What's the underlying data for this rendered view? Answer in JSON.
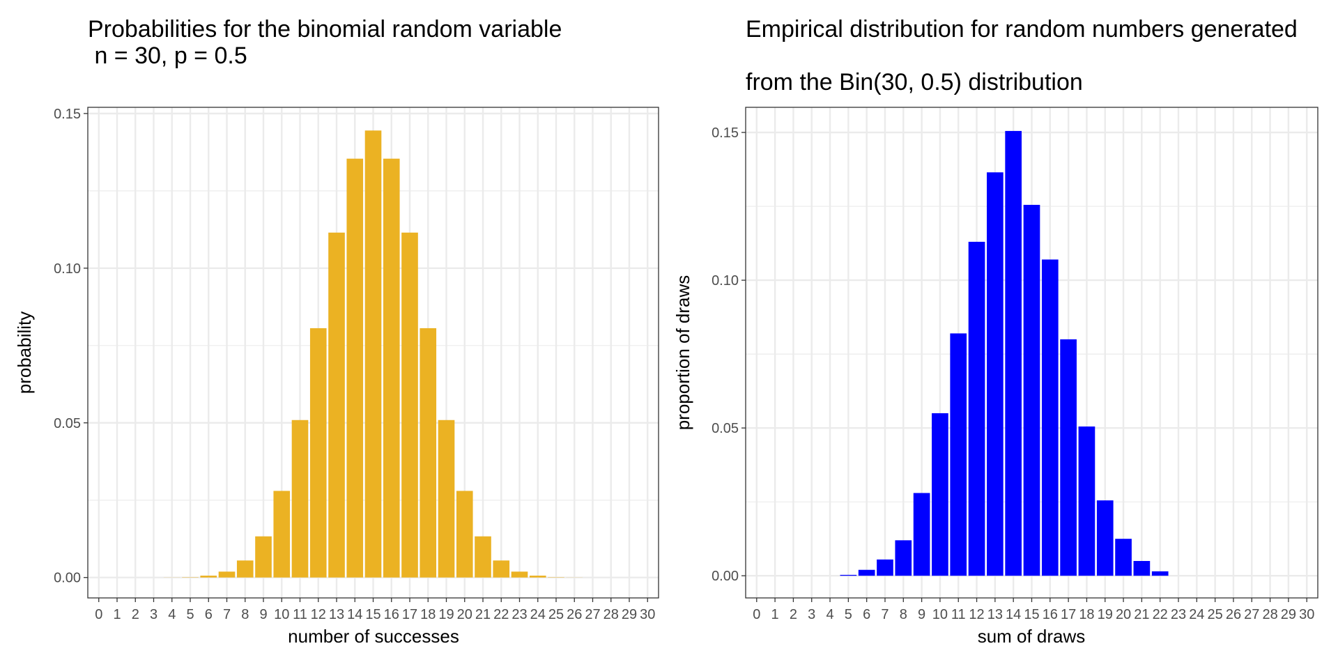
{
  "chart_data": [
    {
      "type": "bar",
      "title": "Probabilities for the binomial random variable\n n = 30, p = 0.5",
      "xlabel": "number of successes",
      "ylabel": "probability",
      "x": [
        0,
        1,
        2,
        3,
        4,
        5,
        6,
        7,
        8,
        9,
        10,
        11,
        12,
        13,
        14,
        15,
        16,
        17,
        18,
        19,
        20,
        21,
        22,
        23,
        24,
        25,
        26,
        27,
        28,
        29,
        30
      ],
      "values": [
        0,
        0,
        0,
        0,
        3e-05,
        0.0001,
        0.0006,
        0.0019,
        0.0055,
        0.0133,
        0.028,
        0.0509,
        0.0806,
        0.1115,
        0.1354,
        0.1445,
        0.1354,
        0.1115,
        0.0806,
        0.0509,
        0.028,
        0.0133,
        0.0055,
        0.0019,
        0.0006,
        0.0001,
        3e-05,
        0,
        0,
        0,
        0
      ],
      "ylim": [
        -0.0066,
        0.152
      ],
      "yticks": [
        0,
        0.05,
        0.1,
        0.15
      ],
      "ytick_labels": [
        "0.00",
        "0.05",
        "0.10",
        "0.15"
      ],
      "bar_color": "#EBB223",
      "grid": true
    },
    {
      "type": "bar",
      "title": "Empirical distribution for random numbers generated\n\nfrom the Bin(30, 0.5) distribution",
      "xlabel": "sum of draws",
      "ylabel": "proportion of draws",
      "x": [
        0,
        1,
        2,
        3,
        4,
        5,
        6,
        7,
        8,
        9,
        10,
        11,
        12,
        13,
        14,
        15,
        16,
        17,
        18,
        19,
        20,
        21,
        22,
        23,
        24,
        25,
        26,
        27,
        28,
        29,
        30
      ],
      "values": [
        0,
        0,
        0,
        0,
        0,
        0.0003,
        0.002,
        0.0055,
        0.012,
        0.028,
        0.055,
        0.082,
        0.113,
        0.1365,
        0.1505,
        0.1255,
        0.107,
        0.08,
        0.0505,
        0.0255,
        0.0125,
        0.005,
        0.0015,
        0,
        0,
        0,
        0,
        0,
        0,
        0,
        0
      ],
      "ylim": [
        -0.0075,
        0.1585
      ],
      "yticks": [
        0,
        0.05,
        0.1,
        0.15
      ],
      "ytick_labels": [
        "0.00",
        "0.05",
        "0.10",
        "0.15"
      ],
      "bar_color": "#0000FF",
      "grid": true
    }
  ]
}
